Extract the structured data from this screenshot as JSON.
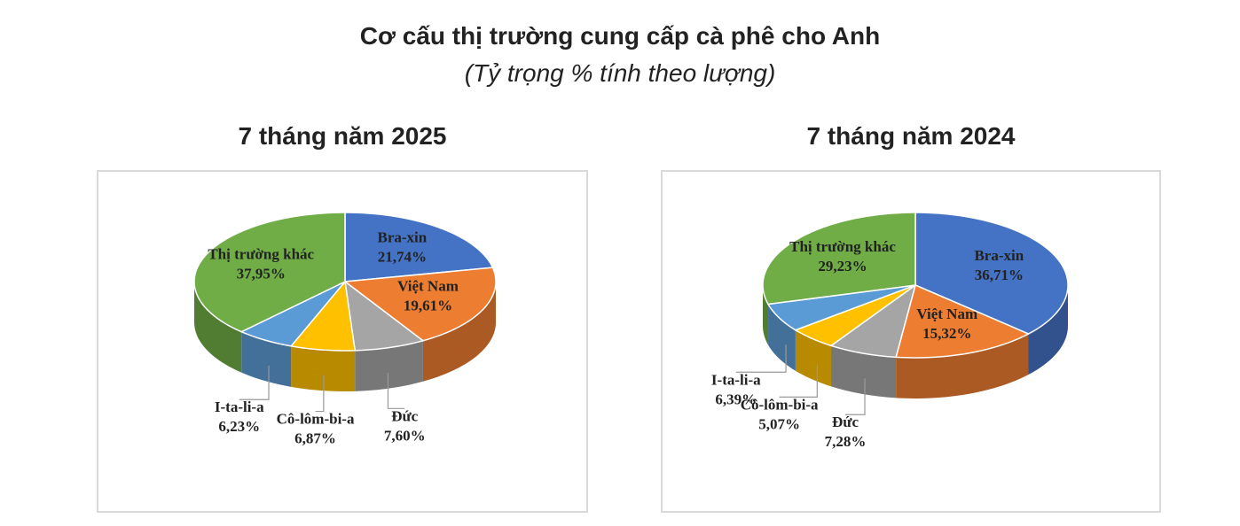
{
  "title": "Cơ cấu thị trường cung cấp cà phê cho Anh",
  "subtitle": "(Tỷ trọng % tính theo lượng)",
  "chart_data": [
    {
      "type": "pie",
      "title": "7 tháng năm 2025",
      "categories": [
        "Bra-xin",
        "Việt Nam",
        "Đức",
        "Cô-lôm-bi-a",
        "I-ta-li-a",
        "Thị trường khác"
      ],
      "values": [
        21.74,
        19.61,
        7.6,
        6.87,
        6.23,
        37.95
      ],
      "value_labels": [
        "21,74%",
        "19,61%",
        "7,60%",
        "6,87%",
        "6,23%",
        "37,95%"
      ],
      "colors": [
        "#4472c4",
        "#ed7d31",
        "#a5a5a5",
        "#ffc000",
        "#5b9bd5",
        "#70ad47"
      ]
    },
    {
      "type": "pie",
      "title": "7 tháng năm 2024",
      "categories": [
        "Bra-xin",
        "Việt Nam",
        "Đức",
        "Cô-lôm-bi-a",
        "I-ta-li-a",
        "Thị trường khác"
      ],
      "values": [
        36.71,
        15.32,
        7.28,
        5.07,
        6.39,
        29.23
      ],
      "value_labels": [
        "36,71%",
        "15,32%",
        "7,28%",
        "5,07%",
        "6,39%",
        "29,23%"
      ],
      "colors": [
        "#4472c4",
        "#ed7d31",
        "#a5a5a5",
        "#ffc000",
        "#5b9bd5",
        "#70ad47"
      ]
    }
  ]
}
